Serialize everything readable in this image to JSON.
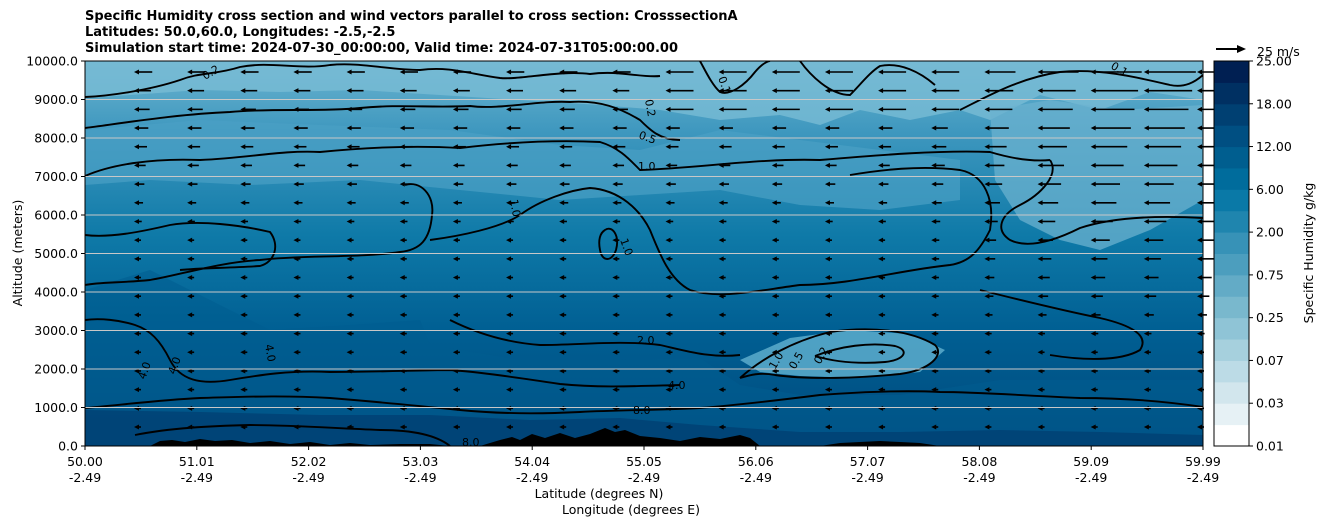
{
  "chart_data": {
    "type": "heatmap",
    "title_lines": [
      "Specific Humidity cross section and wind vectors parallel to cross section: CrosssectionA",
      "Latitudes: 50.0,60.0, Longitudes: -2.5,-2.5",
      "Simulation start time: 2024-07-30_00:00:00, Valid time: 2024-07-31T05:00:00.00"
    ],
    "ylabel": "Altitude (meters)",
    "xlabel_lat": "Latitude (degrees N)",
    "xlabel_lon": "Longitude (degrees E)",
    "ylim": [
      0,
      10000
    ],
    "y_ticks": [
      "0.0",
      "1000.0",
      "2000.0",
      "3000.0",
      "4000.0",
      "5000.0",
      "6000.0",
      "7000.0",
      "8000.0",
      "9000.0",
      "10000.0"
    ],
    "x_ticks_lat": [
      "50.00",
      "51.01",
      "52.02",
      "53.03",
      "54.04",
      "55.05",
      "56.06",
      "57.07",
      "58.08",
      "59.09",
      "59.99"
    ],
    "x_ticks_lon": [
      "-2.49",
      "-2.49",
      "-2.49",
      "-2.49",
      "-2.49",
      "-2.49",
      "-2.49",
      "-2.49",
      "-2.49",
      "-2.49",
      "-2.49"
    ],
    "grid": "horizontal",
    "colorbar": {
      "label": "Specific Humidity g/kg",
      "tick_labels": [
        "0.01",
        "0.03",
        "0.07",
        "0.25",
        "0.75",
        "2.00",
        "6.00",
        "12.00",
        "18.00",
        "25.00"
      ],
      "levels": [
        0.01,
        0.02,
        0.03,
        0.05,
        0.07,
        0.1,
        0.25,
        0.5,
        0.75,
        1.0,
        2.0,
        4.0,
        6.0,
        8.0,
        12.0,
        15.0,
        18.0,
        21.0,
        25.0
      ],
      "colors": [
        "#ffffff",
        "#e6f1f5",
        "#d2e6ed",
        "#bcdbe6",
        "#a6d0dd",
        "#8fc4d6",
        "#79b8cd",
        "#63abc6",
        "#4c9ebe",
        "#3792b7",
        "#1f85ae",
        "#0a79a7",
        "#006c9c",
        "#005e8f",
        "#004f82",
        "#004072",
        "#003062",
        "#001f52"
      ]
    },
    "quiver_key": "25 m/s",
    "contour_labels": [
      "0.1",
      "0.2",
      "0.5",
      "1.0",
      "2.0",
      "4.0",
      "8.0"
    ],
    "colors": {
      "terrain": "#000000",
      "contour": "#000000",
      "background_top": "#6fb6d0",
      "background_bottom": "#004a7e"
    }
  }
}
